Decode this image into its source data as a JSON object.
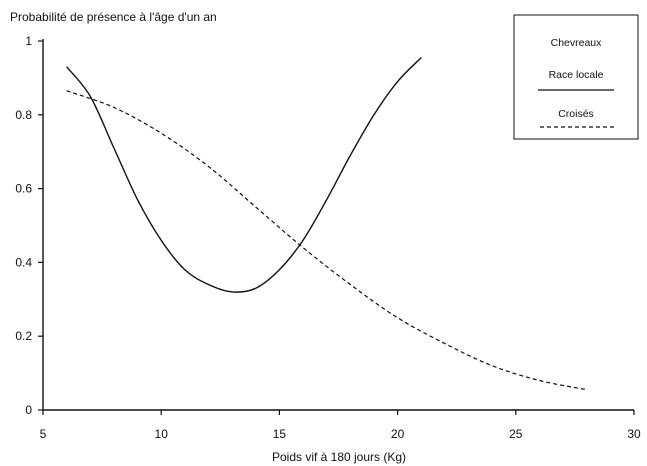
{
  "chart_data": {
    "type": "line",
    "ylabel": "Probabilité de présence à l'âge d'un an",
    "xlabel": "Poids vif à 180 jours (Kg)",
    "xlim": [
      5,
      30
    ],
    "ylim": [
      0,
      1
    ],
    "xticks": [
      5,
      10,
      15,
      20,
      25,
      30
    ],
    "yticks": [
      0,
      0.2,
      0.4,
      0.6,
      0.8,
      1
    ],
    "ytick_labels": [
      "0",
      "0.2",
      "0.4",
      "0.6",
      "0.8",
      "1"
    ],
    "grid": false,
    "legend": {
      "position": "top-right",
      "title": "Chevreaux"
    },
    "series": [
      {
        "name": "Race locale",
        "style": "solid",
        "color": "#111111",
        "x": [
          6,
          7,
          8,
          9,
          10,
          11,
          12,
          13,
          14,
          15,
          16,
          17,
          18,
          19,
          20,
          21
        ],
        "y": [
          0.93,
          0.85,
          0.71,
          0.57,
          0.46,
          0.38,
          0.34,
          0.32,
          0.33,
          0.38,
          0.46,
          0.57,
          0.69,
          0.8,
          0.89,
          0.955
        ]
      },
      {
        "name": "Croisés",
        "style": "dashed",
        "color": "#111111",
        "x": [
          6,
          8,
          10,
          12,
          14,
          16,
          18,
          20,
          22,
          24,
          26,
          28
        ],
        "y": [
          0.865,
          0.82,
          0.75,
          0.66,
          0.55,
          0.44,
          0.34,
          0.25,
          0.18,
          0.12,
          0.08,
          0.055
        ]
      }
    ]
  }
}
